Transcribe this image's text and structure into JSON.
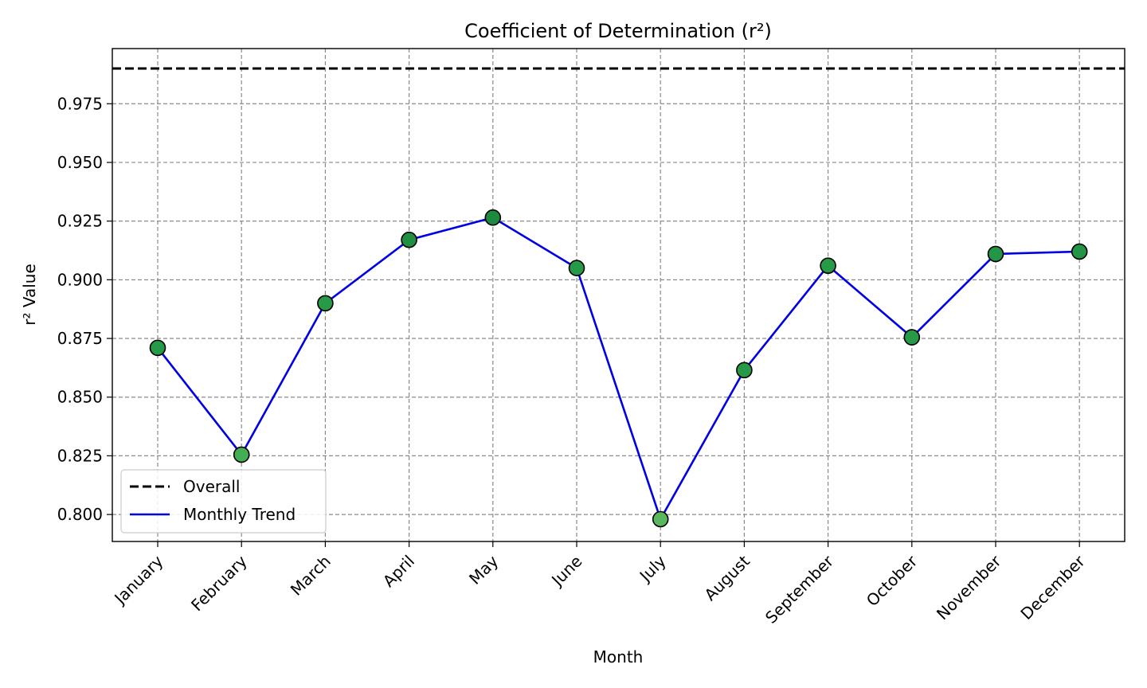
{
  "chart_data": {
    "type": "line",
    "title": "Coefficient of Determination (r²)",
    "xlabel": "Month",
    "ylabel": "r² Value",
    "categories": [
      "January",
      "February",
      "March",
      "April",
      "May",
      "June",
      "July",
      "August",
      "September",
      "October",
      "November",
      "December"
    ],
    "series": [
      {
        "name": "Monthly Trend",
        "values": [
          0.871,
          0.8255,
          0.89,
          0.917,
          0.9265,
          0.905,
          0.798,
          0.8615,
          0.906,
          0.8755,
          0.911,
          0.912
        ],
        "line_color": "#0000e6",
        "marker_colors": [
          "#279a48",
          "#44ae55",
          "#279a48",
          "#1f8f42",
          "#1c8a3f",
          "#279a48",
          "#59b85d",
          "#279a48",
          "#279a48",
          "#279a48",
          "#239546",
          "#239546"
        ]
      }
    ],
    "reference_line": {
      "name": "Overall",
      "value": 0.99,
      "color": "#000000",
      "style": "dashed"
    },
    "ylim": [
      0.7885,
      0.9985
    ],
    "yticks": [
      0.8,
      0.825,
      0.85,
      0.875,
      0.9,
      0.925,
      0.95,
      0.975
    ],
    "ytick_labels": [
      "0.800",
      "0.825",
      "0.850",
      "0.875",
      "0.900",
      "0.925",
      "0.950",
      "0.975"
    ],
    "grid": true,
    "legend": {
      "position": "lower-left",
      "entries": [
        {
          "label": "Overall",
          "style": "dashed",
          "color": "#000000"
        },
        {
          "label": "Monthly Trend",
          "style": "solid",
          "color": "#0000e6"
        }
      ]
    }
  }
}
